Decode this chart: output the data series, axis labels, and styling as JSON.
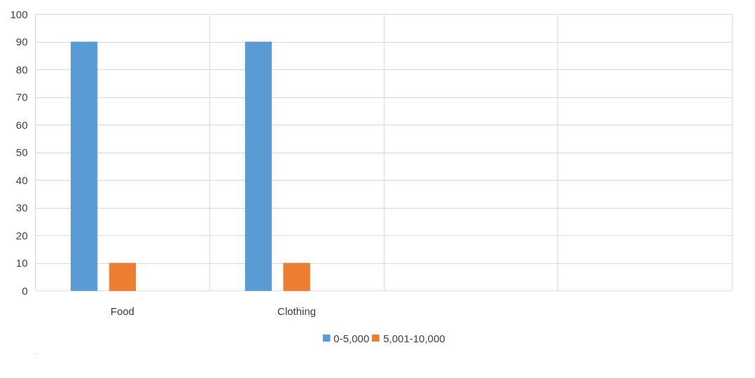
{
  "chart_data": {
    "type": "bar",
    "categories": [
      "Food",
      "Clothing",
      null,
      null
    ],
    "series": [
      {
        "name": "0-5,000",
        "color": "#5b9bd5",
        "values": [
          90,
          90,
          null,
          null
        ]
      },
      {
        "name": "5,001-10,000",
        "color": "#ed7d31",
        "values": [
          10,
          10,
          null,
          null
        ]
      }
    ],
    "ylim": [
      0,
      100
    ],
    "yticks": [
      0,
      10,
      20,
      30,
      40,
      50,
      60,
      70,
      80,
      90,
      100
    ],
    "grid": true,
    "legend": "bottom"
  }
}
